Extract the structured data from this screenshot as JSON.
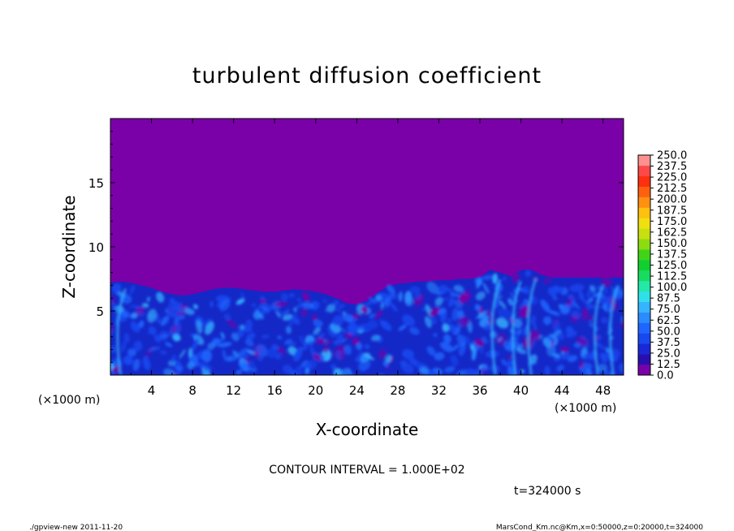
{
  "chart_data": {
    "type": "heatmap",
    "title": "turbulent diffusion coefficient",
    "xlabel": "X-coordinate",
    "ylabel": "Z-coordinate",
    "x_unit_left": "(×1000 m)",
    "x_unit_right": "(×1000 m)",
    "xlim": [
      0,
      50
    ],
    "ylim": [
      0,
      20
    ],
    "x_ticks": [
      4,
      8,
      12,
      16,
      20,
      24,
      28,
      32,
      36,
      40,
      44,
      48
    ],
    "y_ticks": [
      5,
      10,
      15
    ],
    "colorbar": {
      "levels": [
        0.0,
        12.5,
        25.0,
        37.5,
        50.0,
        62.5,
        75.0,
        87.5,
        100.0,
        112.5,
        125.0,
        137.5,
        150.0,
        162.5,
        175.0,
        187.5,
        200.0,
        212.5,
        225.0,
        237.5,
        250.0
      ],
      "level_labels": [
        "0.0",
        "12.5",
        "25.0",
        "37.5",
        "50.0",
        "62.5",
        "75.0",
        "87.5",
        "100.0",
        "112.5",
        "125.0",
        "137.5",
        "150.0",
        "162.5",
        "175.0",
        "187.5",
        "200.0",
        "212.5",
        "225.0",
        "237.5",
        "250.0"
      ],
      "colors": [
        "#7a00a8",
        "#2a0fb0",
        "#1a28d8",
        "#1848f0",
        "#1e66ff",
        "#2a8cff",
        "#36b4ff",
        "#30e0e8",
        "#22e8a8",
        "#18dc60",
        "#10d030",
        "#40d418",
        "#8cdc10",
        "#c8e010",
        "#f0e010",
        "#ffc010",
        "#ff9010",
        "#ff6010",
        "#ff3010",
        "#ff4848",
        "#ff9090"
      ]
    },
    "boundary_layer_top": [
      7.2,
      7.3,
      7.2,
      7.0,
      6.8,
      6.5,
      6.3,
      6.2,
      6.3,
      6.5,
      6.7,
      6.8,
      6.8,
      6.7,
      6.6,
      6.5,
      6.5,
      6.6,
      6.7,
      6.6,
      6.5,
      6.3,
      6.0,
      5.6,
      5.5,
      5.8,
      6.4,
      6.9,
      7.1,
      7.2,
      7.3,
      7.3,
      7.4,
      7.4,
      7.5,
      7.5,
      7.6,
      8.2,
      8.0,
      7.7,
      8.2,
      8.2,
      7.8,
      7.6,
      7.6,
      7.6,
      7.6,
      7.6,
      7.6,
      7.6,
      7.6
    ],
    "contour_interval": "CONTOUR INTERVAL = 1.000E+02",
    "time": "t=324000 s"
  },
  "footer": {
    "left": "./gpview-new  2011-11-20",
    "right": "MarsCond_Km.nc@Km,x=0:50000,z=0:20000,t=324000"
  }
}
